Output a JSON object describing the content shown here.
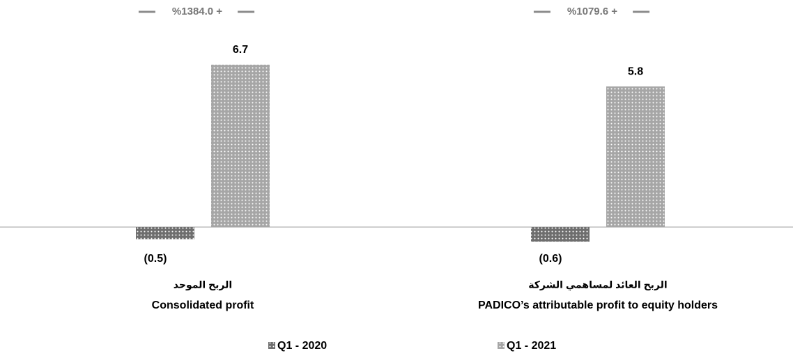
{
  "chart_data": {
    "type": "bar",
    "categories": [
      "Consolidated profit",
      "PADICO’s attributable profit to equity holders"
    ],
    "categories_ar": [
      "الربح الموحد",
      "الربح العائد لمساهمي الشركة"
    ],
    "annotations": [
      "%1384.0 +",
      "%1079.6 +"
    ],
    "series": [
      {
        "name": "Q1 - 2020",
        "color": "#6e6e6e",
        "values": [
          -0.5,
          -0.6
        ],
        "value_labels": [
          "(0.5)",
          "(0.6)"
        ]
      },
      {
        "name": "Q1 - 2021",
        "color": "#a6a6a6",
        "values": [
          6.7,
          5.8
        ]
      }
    ],
    "ylim": [
      -1,
      7
    ]
  }
}
